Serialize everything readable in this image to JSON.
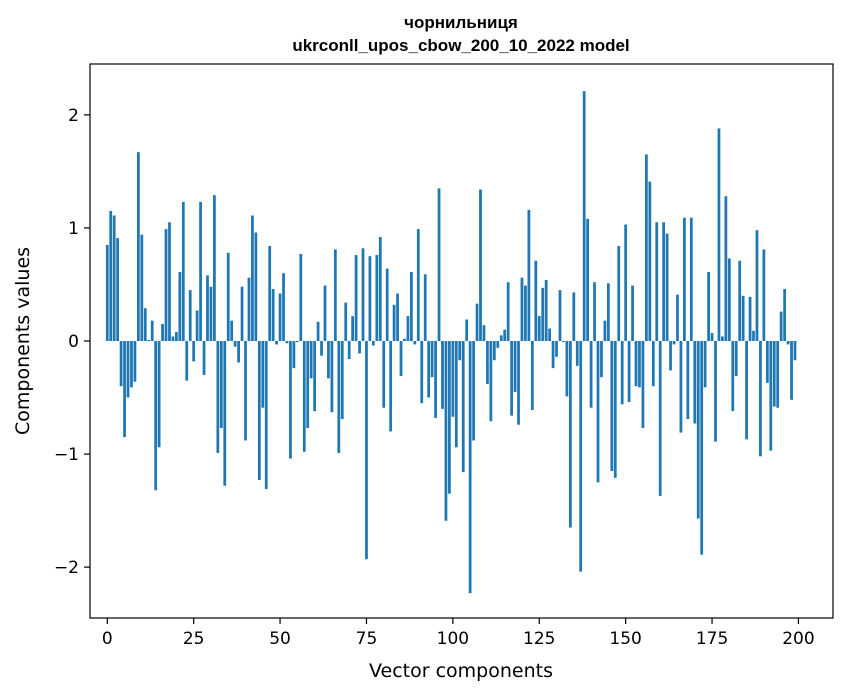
{
  "chart_data": {
    "type": "bar",
    "title": "чорнильниця",
    "subtitle": "ukrconll_upos_cbow_200_10_2022 model",
    "xlabel": "Vector components",
    "ylabel": "Components values",
    "xlim": [
      -5,
      210
    ],
    "ylim": [
      -2.45,
      2.45
    ],
    "xticks": [
      0,
      25,
      50,
      75,
      100,
      125,
      150,
      175,
      200
    ],
    "xtick_labels": [
      "0",
      "25",
      "50",
      "75",
      "100",
      "125",
      "150",
      "175",
      "200"
    ],
    "yticks": [
      -2,
      -1,
      0,
      1,
      2
    ],
    "ytick_labels": [
      "−2",
      "−1",
      "0",
      "1",
      "2"
    ],
    "bar_color": "#1f77b4",
    "grid": false,
    "x": [
      0,
      1,
      2,
      3,
      4,
      5,
      6,
      7,
      8,
      9,
      10,
      11,
      12,
      13,
      14,
      15,
      16,
      17,
      18,
      19,
      20,
      21,
      22,
      23,
      24,
      25,
      26,
      27,
      28,
      29,
      30,
      31,
      32,
      33,
      34,
      35,
      36,
      37,
      38,
      39,
      40,
      41,
      42,
      43,
      44,
      45,
      46,
      47,
      48,
      49,
      50,
      51,
      52,
      53,
      54,
      55,
      56,
      57,
      58,
      59,
      60,
      61,
      62,
      63,
      64,
      65,
      66,
      67,
      68,
      69,
      70,
      71,
      72,
      73,
      74,
      75,
      76,
      77,
      78,
      79,
      80,
      81,
      82,
      83,
      84,
      85,
      86,
      87,
      88,
      89,
      90,
      91,
      92,
      93,
      94,
      95,
      96,
      97,
      98,
      99,
      100,
      101,
      102,
      103,
      104,
      105,
      106,
      107,
      108,
      109,
      110,
      111,
      112,
      113,
      114,
      115,
      116,
      117,
      118,
      119,
      120,
      121,
      122,
      123,
      124,
      125,
      126,
      127,
      128,
      129,
      130,
      131,
      132,
      133,
      134,
      135,
      136,
      137,
      138,
      139,
      140,
      141,
      142,
      143,
      144,
      145,
      146,
      147,
      148,
      149,
      150,
      151,
      152,
      153,
      154,
      155,
      156,
      157,
      158,
      159,
      160,
      161,
      162,
      163,
      164,
      165,
      166,
      167,
      168,
      169,
      170,
      171,
      172,
      173,
      174,
      175,
      176,
      177,
      178,
      179,
      180,
      181,
      182,
      183,
      184,
      185,
      186,
      187,
      188,
      189,
      190,
      191,
      192,
      193,
      194,
      195,
      196,
      197,
      198,
      199
    ],
    "values": [
      0.85,
      1.15,
      1.11,
      0.91,
      -0.4,
      -0.85,
      -0.5,
      -0.41,
      -0.36,
      1.67,
      0.94,
      0.29,
      0.01,
      0.18,
      -1.32,
      -0.94,
      0.15,
      0.99,
      1.05,
      0.04,
      0.08,
      0.61,
      1.23,
      -0.35,
      0.45,
      -0.18,
      0.27,
      1.23,
      -0.3,
      0.58,
      0.48,
      1.29,
      -0.99,
      -0.77,
      -1.28,
      0.78,
      0.18,
      -0.05,
      -0.19,
      0.48,
      -0.88,
      0.56,
      1.11,
      0.96,
      -1.23,
      -0.59,
      -1.31,
      0.84,
      0.46,
      -0.03,
      0.42,
      0.6,
      -0.02,
      -1.04,
      -0.24,
      -0.01,
      0.77,
      -0.98,
      -0.77,
      -0.33,
      -0.62,
      0.17,
      -0.13,
      0.49,
      -0.33,
      -0.63,
      0.81,
      -0.99,
      -0.69,
      0.34,
      -0.16,
      0.22,
      0.76,
      -0.11,
      0.82,
      -1.93,
      0.75,
      -0.04,
      0.76,
      0.92,
      -0.59,
      0.64,
      -0.8,
      0.32,
      0.42,
      -0.31,
      0.02,
      0.22,
      0.61,
      -0.03,
      0.99,
      -0.55,
      0.59,
      -0.5,
      -0.32,
      -0.68,
      1.35,
      -0.6,
      -1.59,
      -1.35,
      -0.67,
      -0.94,
      -0.17,
      -1.16,
      0.19,
      -2.23,
      -0.88,
      0.33,
      1.34,
      0.14,
      -0.38,
      -0.71,
      -0.17,
      -0.06,
      0.05,
      0.1,
      0.52,
      -0.66,
      -0.45,
      -0.74,
      0.56,
      0.49,
      1.16,
      -0.61,
      0.71,
      0.22,
      0.47,
      0.54,
      0.11,
      -0.24,
      -0.14,
      0.45,
      -0.01,
      -0.49,
      -1.65,
      0.43,
      -0.22,
      -2.04,
      2.21,
      1.08,
      -0.59,
      0.52,
      -1.25,
      -0.32,
      0.18,
      0.51,
      -1.15,
      -1.21,
      0.84,
      -0.56,
      1.03,
      -0.54,
      0.49,
      -0.4,
      -0.41,
      -0.77,
      1.65,
      1.41,
      -0.4,
      1.05,
      -1.37,
      1.05,
      0.95,
      -0.26,
      -0.03,
      0.41,
      -0.81,
      1.09,
      -0.69,
      1.09,
      -0.73,
      -1.57,
      -1.89,
      -0.41,
      0.61,
      0.07,
      -0.89,
      1.88,
      0.04,
      1.28,
      0.73,
      -0.62,
      -0.31,
      0.71,
      0.4,
      -0.87,
      0.39,
      0.09,
      0.98,
      -1.02,
      0.81,
      -0.37,
      -0.97,
      -0.58,
      -0.59,
      0.26,
      0.46,
      -0.03,
      -0.52,
      -0.17
    ]
  }
}
